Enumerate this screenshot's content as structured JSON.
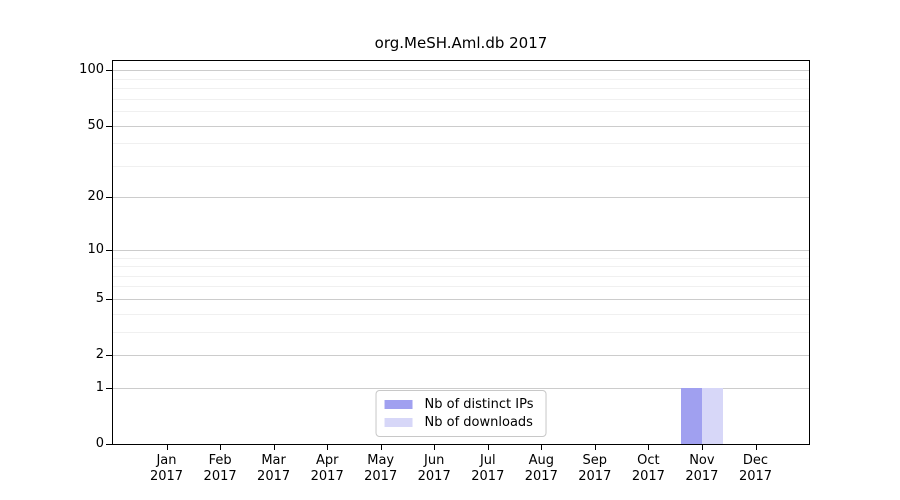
{
  "chart_data": {
    "type": "bar",
    "title": "org.MeSH.Aml.db 2017",
    "categories": [
      {
        "month": "Jan",
        "year": "2017"
      },
      {
        "month": "Feb",
        "year": "2017"
      },
      {
        "month": "Mar",
        "year": "2017"
      },
      {
        "month": "Apr",
        "year": "2017"
      },
      {
        "month": "May",
        "year": "2017"
      },
      {
        "month": "Jun",
        "year": "2017"
      },
      {
        "month": "Jul",
        "year": "2017"
      },
      {
        "month": "Aug",
        "year": "2017"
      },
      {
        "month": "Sep",
        "year": "2017"
      },
      {
        "month": "Oct",
        "year": "2017"
      },
      {
        "month": "Nov",
        "year": "2017"
      },
      {
        "month": "Dec",
        "year": "2017"
      }
    ],
    "series": [
      {
        "name": "Nb of distinct IPs",
        "color": "#a0a0f0",
        "values": [
          0,
          0,
          0,
          0,
          0,
          0,
          0,
          0,
          0,
          0,
          1,
          0
        ]
      },
      {
        "name": "Nb of downloads",
        "color": "#d7d7f8",
        "values": [
          0,
          0,
          0,
          0,
          0,
          0,
          0,
          0,
          0,
          0,
          1,
          0
        ]
      }
    ],
    "xlabel": "",
    "ylabel": "",
    "y_axis": {
      "scale": "log1p",
      "major_ticks": [
        0,
        1,
        2,
        5,
        10,
        20,
        50,
        100
      ],
      "gridlines": [
        1,
        2,
        3,
        4,
        5,
        6,
        7,
        8,
        9,
        10,
        20,
        30,
        40,
        50,
        60,
        70,
        80,
        90,
        100
      ],
      "range": [
        0,
        112
      ]
    },
    "legend": {
      "position": "bottom-center"
    },
    "colors": {
      "grid_major": "#cccccc",
      "grid_minor": "#f0f0f0",
      "axis": "#000000"
    }
  }
}
